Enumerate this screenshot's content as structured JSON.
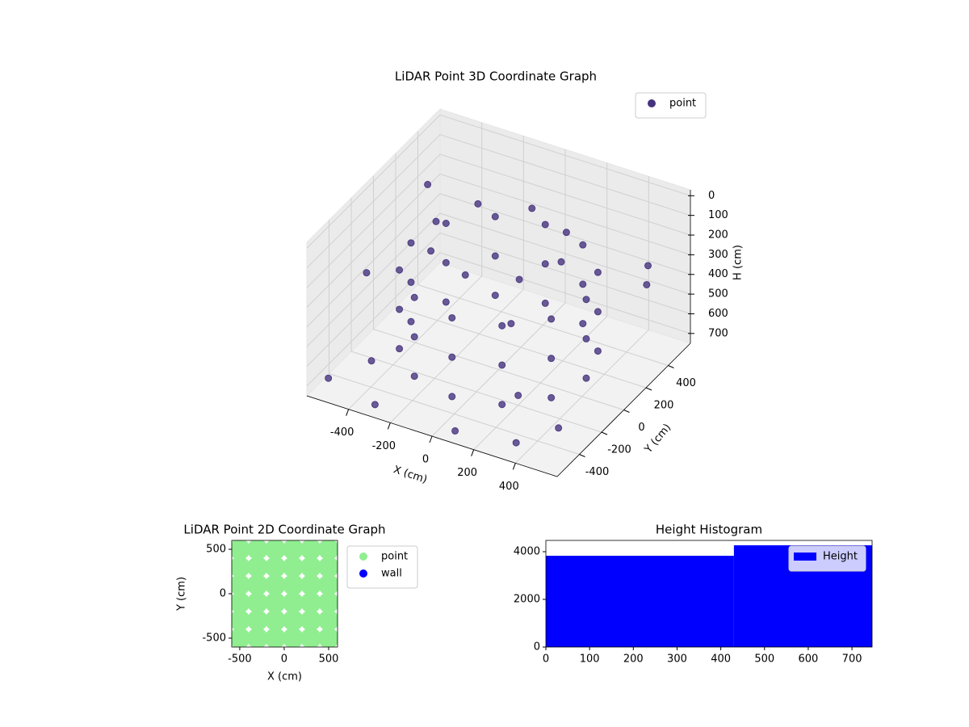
{
  "chart_data": [
    {
      "type": "scatter3d",
      "title": "LiDAR Point 3D Coordinate Graph",
      "xlabel": "X (cm)",
      "ylabel": "Y (cm)",
      "zlabel": "H (cm)",
      "xlim": [
        -600,
        600
      ],
      "ylim": [
        -600,
        600
      ],
      "zlim": [
        -30,
        750
      ],
      "zinverted": true,
      "xticks": [
        -400,
        -200,
        0,
        200,
        400
      ],
      "yticks": [
        -400,
        -200,
        0,
        200,
        400
      ],
      "zticks": [
        0,
        100,
        200,
        300,
        400,
        500,
        600,
        700
      ],
      "grid": true,
      "legend": "upper right",
      "series": [
        {
          "name": "point",
          "color": "#46337e",
          "x": [
            420,
            420,
            420,
            364,
            364,
            364,
            210,
            210,
            210,
            0,
            0,
            0,
            -210,
            -210,
            -210,
            -364,
            -364,
            -364,
            -420,
            -420,
            -420,
            -364,
            -364,
            -364,
            -210,
            -210,
            -210,
            0,
            0,
            0,
            210,
            210,
            210,
            364,
            364,
            364,
            300,
            212,
            0,
            -212,
            -300,
            -212,
            0,
            212,
            -550,
            -300,
            100,
            500,
            550,
            450,
            -500,
            -580,
            200,
            -100,
            350,
            -450
          ],
          "y": [
            0,
            0,
            0,
            210,
            210,
            210,
            364,
            364,
            364,
            420,
            420,
            420,
            364,
            364,
            364,
            210,
            210,
            210,
            0,
            0,
            0,
            -210,
            -210,
            -210,
            -364,
            -364,
            -364,
            -420,
            -420,
            -420,
            -364,
            -364,
            -364,
            -210,
            -210,
            -210,
            0,
            212,
            300,
            212,
            0,
            -212,
            -300,
            -212,
            -500,
            -550,
            -580,
            -400,
            300,
            500,
            300,
            -100,
            -200,
            300,
            -500,
            -300
          ],
          "z": [
            250,
            450,
            650,
            250,
            450,
            650,
            250,
            450,
            650,
            250,
            450,
            650,
            250,
            450,
            650,
            250,
            450,
            650,
            250,
            450,
            650,
            250,
            450,
            650,
            250,
            450,
            650,
            250,
            450,
            650,
            250,
            450,
            650,
            250,
            450,
            650,
            100,
            100,
            100,
            100,
            100,
            100,
            100,
            100,
            700,
            720,
            700,
            650,
            300,
            350,
            150,
            400,
            700,
            720,
            720,
            690
          ]
        }
      ]
    },
    {
      "type": "scatter",
      "title": "LiDAR Point 2D Coordinate Graph",
      "xlabel": "X (cm)",
      "ylabel": "Y (cm)",
      "xlim": [
        -590,
        600
      ],
      "ylim": [
        -600,
        600
      ],
      "xticks": [
        -500,
        0,
        500
      ],
      "yticks": [
        -500,
        0,
        500
      ],
      "legend": "outside right",
      "series": [
        {
          "name": "point",
          "color": "#90ee90",
          "x": [
            -500,
            -500,
            -500,
            -500,
            -500,
            -500,
            -300,
            -300,
            -300,
            -300,
            -300,
            -300,
            -100,
            -100,
            -100,
            -100,
            -100,
            -100,
            100,
            100,
            100,
            100,
            100,
            100,
            300,
            300,
            300,
            300,
            300,
            300,
            500,
            500,
            500,
            500,
            500,
            500
          ],
          "y": [
            -500,
            -300,
            -100,
            100,
            300,
            500,
            -500,
            -300,
            -100,
            100,
            300,
            500,
            -500,
            -300,
            -100,
            100,
            300,
            500,
            -500,
            -300,
            -100,
            100,
            300,
            500,
            -500,
            -300,
            -100,
            100,
            300,
            500,
            -500,
            -300,
            -100,
            100,
            300,
            500
          ]
        },
        {
          "name": "wall",
          "color": "#0000ff",
          "x": [],
          "y": []
        }
      ]
    },
    {
      "type": "histogram",
      "title": "Height Histogram",
      "xlim": [
        0,
        746
      ],
      "ylim": [
        0,
        4475
      ],
      "xticks": [
        0,
        100,
        200,
        300,
        400,
        500,
        600,
        700
      ],
      "yticks": [
        0,
        2000,
        4000
      ],
      "legend": "upper right",
      "series": [
        {
          "name": "Height",
          "color": "#0000ff",
          "bins": [
            0,
            430,
            746
          ],
          "counts": [
            3830,
            4270
          ]
        }
      ]
    }
  ]
}
